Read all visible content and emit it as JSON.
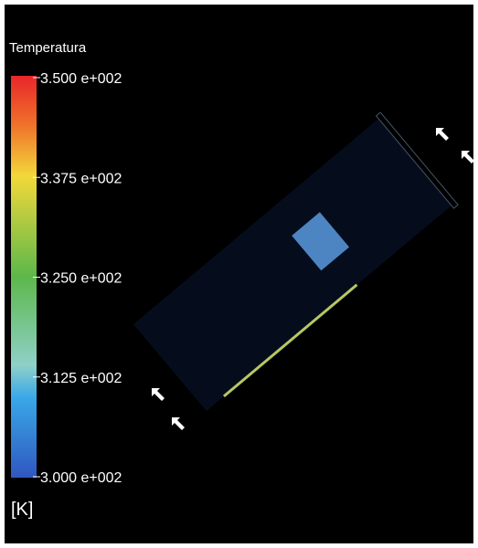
{
  "legend": {
    "title": "Temperatura",
    "unit": "[K]",
    "ticks": [
      "3.500 e+002",
      "3.375 e+002",
      "3.250 e+002",
      "3.125 e+002",
      "3.000 e+002"
    ]
  }
}
